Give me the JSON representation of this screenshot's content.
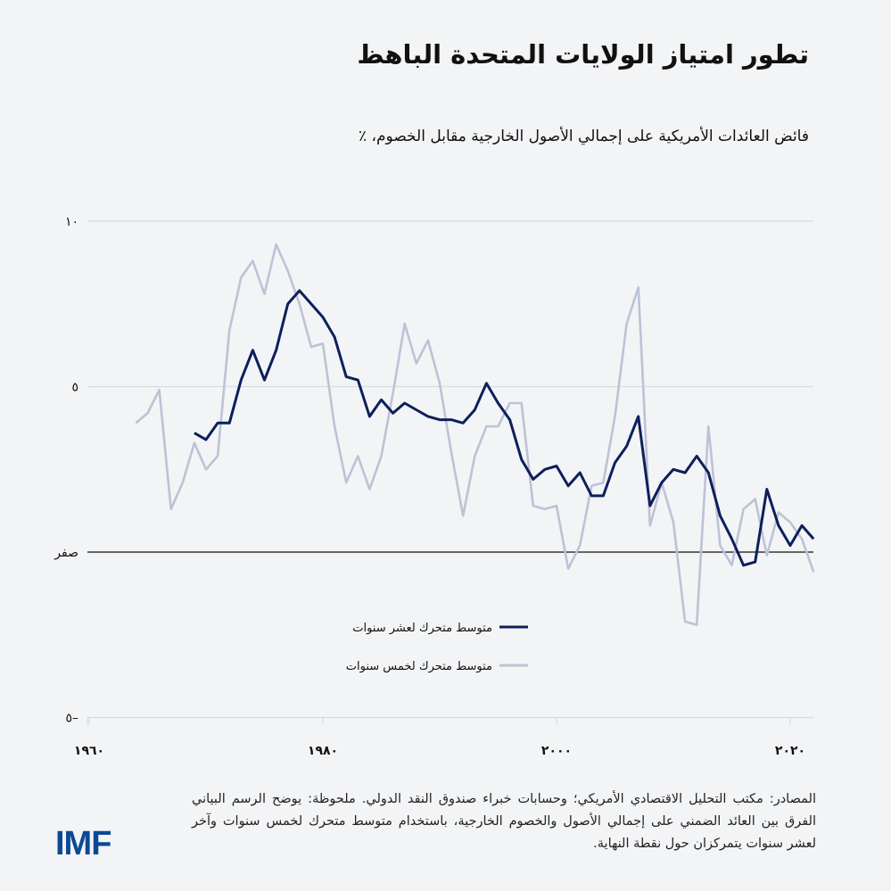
{
  "title": "تطور امتياز الولايات المتحدة الباهظ",
  "subtitle": "فائض العائدات الأمريكية على إجمالي الأصول الخارجية مقابل الخصوم، ٪",
  "footer": "المصادر: مكتب التحليل الاقتصادي الأمريكي؛ وحسابات خبراء صندوق النقد الدولي. ملحوظة: يوضح الرسم البياني الفرق بين العائد الضمني على إجمالي الأصول والخصوم الخارجية، باستخدام متوسط متحرك لخمس سنوات وآخر لعشر سنوات يتمركزان حول نقطة النهاية.",
  "logo": "IMF",
  "chart_data": {
    "type": "line",
    "ylim": [
      -5,
      10
    ],
    "xlim": [
      1960,
      2022
    ],
    "grid": true,
    "legend_placement": "center",
    "y_ticks": [
      {
        "value": 10,
        "label": "١٠"
      },
      {
        "value": 5,
        "label": "٥"
      },
      {
        "value": 0,
        "label": "صفر"
      },
      {
        "value": -5,
        "label": "٥–"
      }
    ],
    "x_ticks": [
      {
        "value": 1960,
        "label": "١٩٦٠"
      },
      {
        "value": 1980,
        "label": "١٩٨٠"
      },
      {
        "value": 2000,
        "label": "٢٠٠٠"
      },
      {
        "value": 2020,
        "label": "٢٠٢٠"
      }
    ],
    "series": [
      {
        "name": "متوسط متحرك لعشر سنوات",
        "color": "#0d1f5c",
        "start_year": 1969,
        "values": [
          3.6,
          3.4,
          3.9,
          3.9,
          5.2,
          6.1,
          5.2,
          6.1,
          7.5,
          7.9,
          7.5,
          7.1,
          6.5,
          5.3,
          5.2,
          4.1,
          4.6,
          4.2,
          4.5,
          4.3,
          4.1,
          4.0,
          4.0,
          3.9,
          4.3,
          5.1,
          4.5,
          4.0,
          2.8,
          2.2,
          2.5,
          2.6,
          2.0,
          2.4,
          1.7,
          1.7,
          2.7,
          3.2,
          4.1,
          1.4,
          2.1,
          2.5,
          2.4,
          2.9,
          2.4,
          1.1,
          0.4,
          -0.4,
          -0.3,
          1.9,
          0.8,
          0.2,
          0.8,
          0.4
        ]
      },
      {
        "name": "متوسط متحرك لخمس سنوات",
        "color": "#bcc3d6",
        "start_year": 1964,
        "values": [
          3.9,
          4.2,
          4.9,
          1.3,
          2.1,
          3.3,
          2.5,
          2.9,
          6.7,
          8.3,
          8.8,
          7.8,
          9.3,
          8.5,
          7.5,
          6.2,
          6.3,
          3.8,
          2.1,
          2.9,
          1.9,
          2.9,
          4.8,
          6.9,
          5.7,
          6.4,
          5.1,
          3.0,
          1.1,
          2.9,
          3.8,
          3.8,
          4.5,
          4.5,
          1.4,
          1.3,
          1.4,
          -0.5,
          0.2,
          2.0,
          2.1,
          4.1,
          6.9,
          8.0,
          0.8,
          2.1,
          0.9,
          -2.1,
          -2.2,
          3.8,
          0.2,
          -0.4,
          1.3,
          1.6,
          -0.1,
          1.2,
          0.9,
          0.4,
          -0.6
        ]
      }
    ]
  }
}
